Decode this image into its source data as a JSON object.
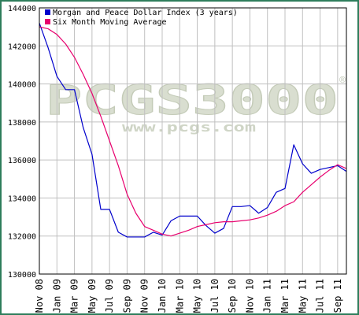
{
  "watermark": {
    "brand": "PCGS3000",
    "registered": "®",
    "site": "www.pcgs.com"
  },
  "chart_data": {
    "type": "line",
    "title": "",
    "xlabel": "",
    "ylabel": "",
    "ylim": [
      130000,
      144000
    ],
    "yticks": [
      130000,
      132000,
      134000,
      136000,
      138000,
      140000,
      142000,
      144000
    ],
    "ytick_labels": [
      "130000",
      "132000",
      "134000",
      "136000",
      "138000",
      "140000",
      "142000",
      "144000"
    ],
    "grid": true,
    "legend_position": "top-left",
    "x_labels": [
      "Nov 08",
      "Jan 09",
      "Mar 09",
      "May 09",
      "Jul 09",
      "Sep 09",
      "Nov 09",
      "Jan 10",
      "Mar 10",
      "May 10",
      "Jul 10",
      "Sep 10",
      "Nov 10",
      "Jan 11",
      "Mar 11",
      "May 11",
      "Jul 11",
      "Sep 11"
    ],
    "x_label_every": 2,
    "series": [
      {
        "name": "Morgan and Peace Dollar Index (3 years)",
        "color": "#0000cc",
        "values": [
          143200,
          141900,
          140400,
          139700,
          139700,
          137700,
          136300,
          133400,
          133400,
          132200,
          131950,
          131950,
          131950,
          132200,
          132050,
          132800,
          133050,
          133050,
          133050,
          132550,
          132150,
          132400,
          133550,
          133550,
          133600,
          133200,
          133500,
          134300,
          134500,
          136800,
          135800,
          135300,
          135500,
          135600,
          135700,
          135400
        ]
      },
      {
        "name": "Six Month Moving Average",
        "color": "#e8006e",
        "values": [
          143000,
          142900,
          142600,
          142100,
          141400,
          140500,
          139500,
          138300,
          137000,
          135700,
          134200,
          133200,
          132500,
          132300,
          132100,
          132000,
          132150,
          132300,
          132500,
          132600,
          132700,
          132750,
          132750,
          132800,
          132850,
          132950,
          133100,
          133300,
          133600,
          133800,
          134300,
          134700,
          135100,
          135450,
          135750,
          135550
        ]
      }
    ]
  }
}
